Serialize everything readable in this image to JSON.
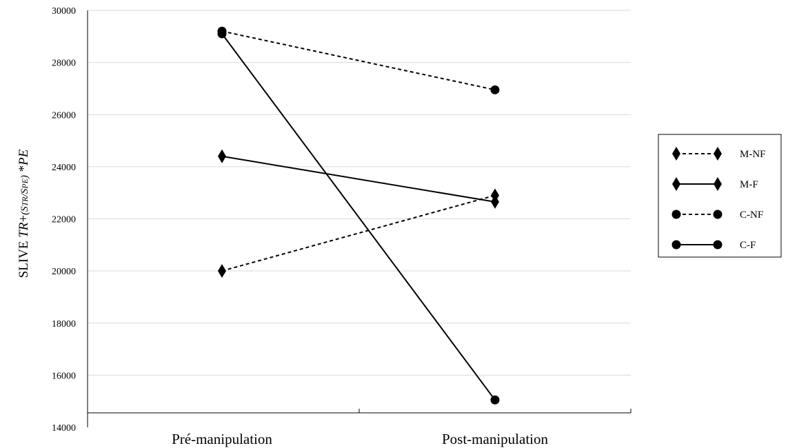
{
  "chart_data": {
    "type": "line",
    "categories": [
      "Pré-manipulation",
      "Post-manipulation"
    ],
    "ylabel": {
      "prefix": "SLIVE ",
      "tr": "TR",
      "plus": "+",
      "paren_open": "(",
      "s1": "S",
      "tr_sub": "TR",
      "slash": "/",
      "s2": "S",
      "pe_sub": "PE",
      "paren_close": ")",
      "star": " *",
      "pe": "PE"
    },
    "ylim": [
      14000,
      30000
    ],
    "yticks": [
      14000,
      16000,
      18000,
      20000,
      22000,
      24000,
      26000,
      28000,
      30000
    ],
    "grid": true,
    "legend_position": "right",
    "series": [
      {
        "name": "M-NF",
        "values": [
          20000,
          22900
        ],
        "marker": "diamond",
        "line": "dashed"
      },
      {
        "name": "M-F",
        "values": [
          24400,
          22650
        ],
        "marker": "diamond",
        "line": "solid"
      },
      {
        "name": "C-NF",
        "values": [
          29200,
          26950
        ],
        "marker": "circle",
        "line": "dashed"
      },
      {
        "name": "C-F",
        "values": [
          29100,
          15050
        ],
        "marker": "circle",
        "line": "solid"
      }
    ]
  }
}
